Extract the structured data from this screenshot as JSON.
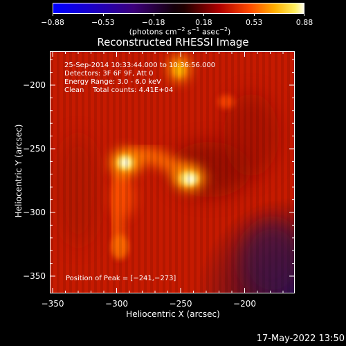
{
  "colorbar": {
    "tick_labels": [
      "−0.88",
      "−0.53",
      "−0.18",
      "0.18",
      "0.53",
      "0.88"
    ],
    "units_prefix": "(photons cm",
    "units_exp1": "−2",
    "units_mid1": " s",
    "units_exp2": "−1",
    "units_mid2": " asec",
    "units_exp3": "−2",
    "units_suffix": ")"
  },
  "title": "Reconstructed RHESSI Image",
  "info": {
    "line1": "25-Sep-2014 10:33:44.000 to 10:36:56.000",
    "line2": "Detectors: 3F 6F 9F, Att 0",
    "line3": "Energy Range: 3.0 - 6.0 keV",
    "line4": "Clean    Total counts: 4.41E+04"
  },
  "peak_label": "Position of Peak = [−241,−273]",
  "axes": {
    "x_title": "Heliocentric X (arcsec)",
    "y_title": "Heliocentric Y (arcsec)",
    "x_ticks": [
      "−350",
      "−300",
      "−250",
      "−200"
    ],
    "y_ticks": [
      "−200",
      "−250",
      "−300",
      "−350"
    ]
  },
  "timestamp": "17-May-2022 13:50",
  "colors": {
    "background": "#000000",
    "frame": "#ffffff",
    "map_base": "#c81800",
    "map_bright": "#ffffe0"
  }
}
